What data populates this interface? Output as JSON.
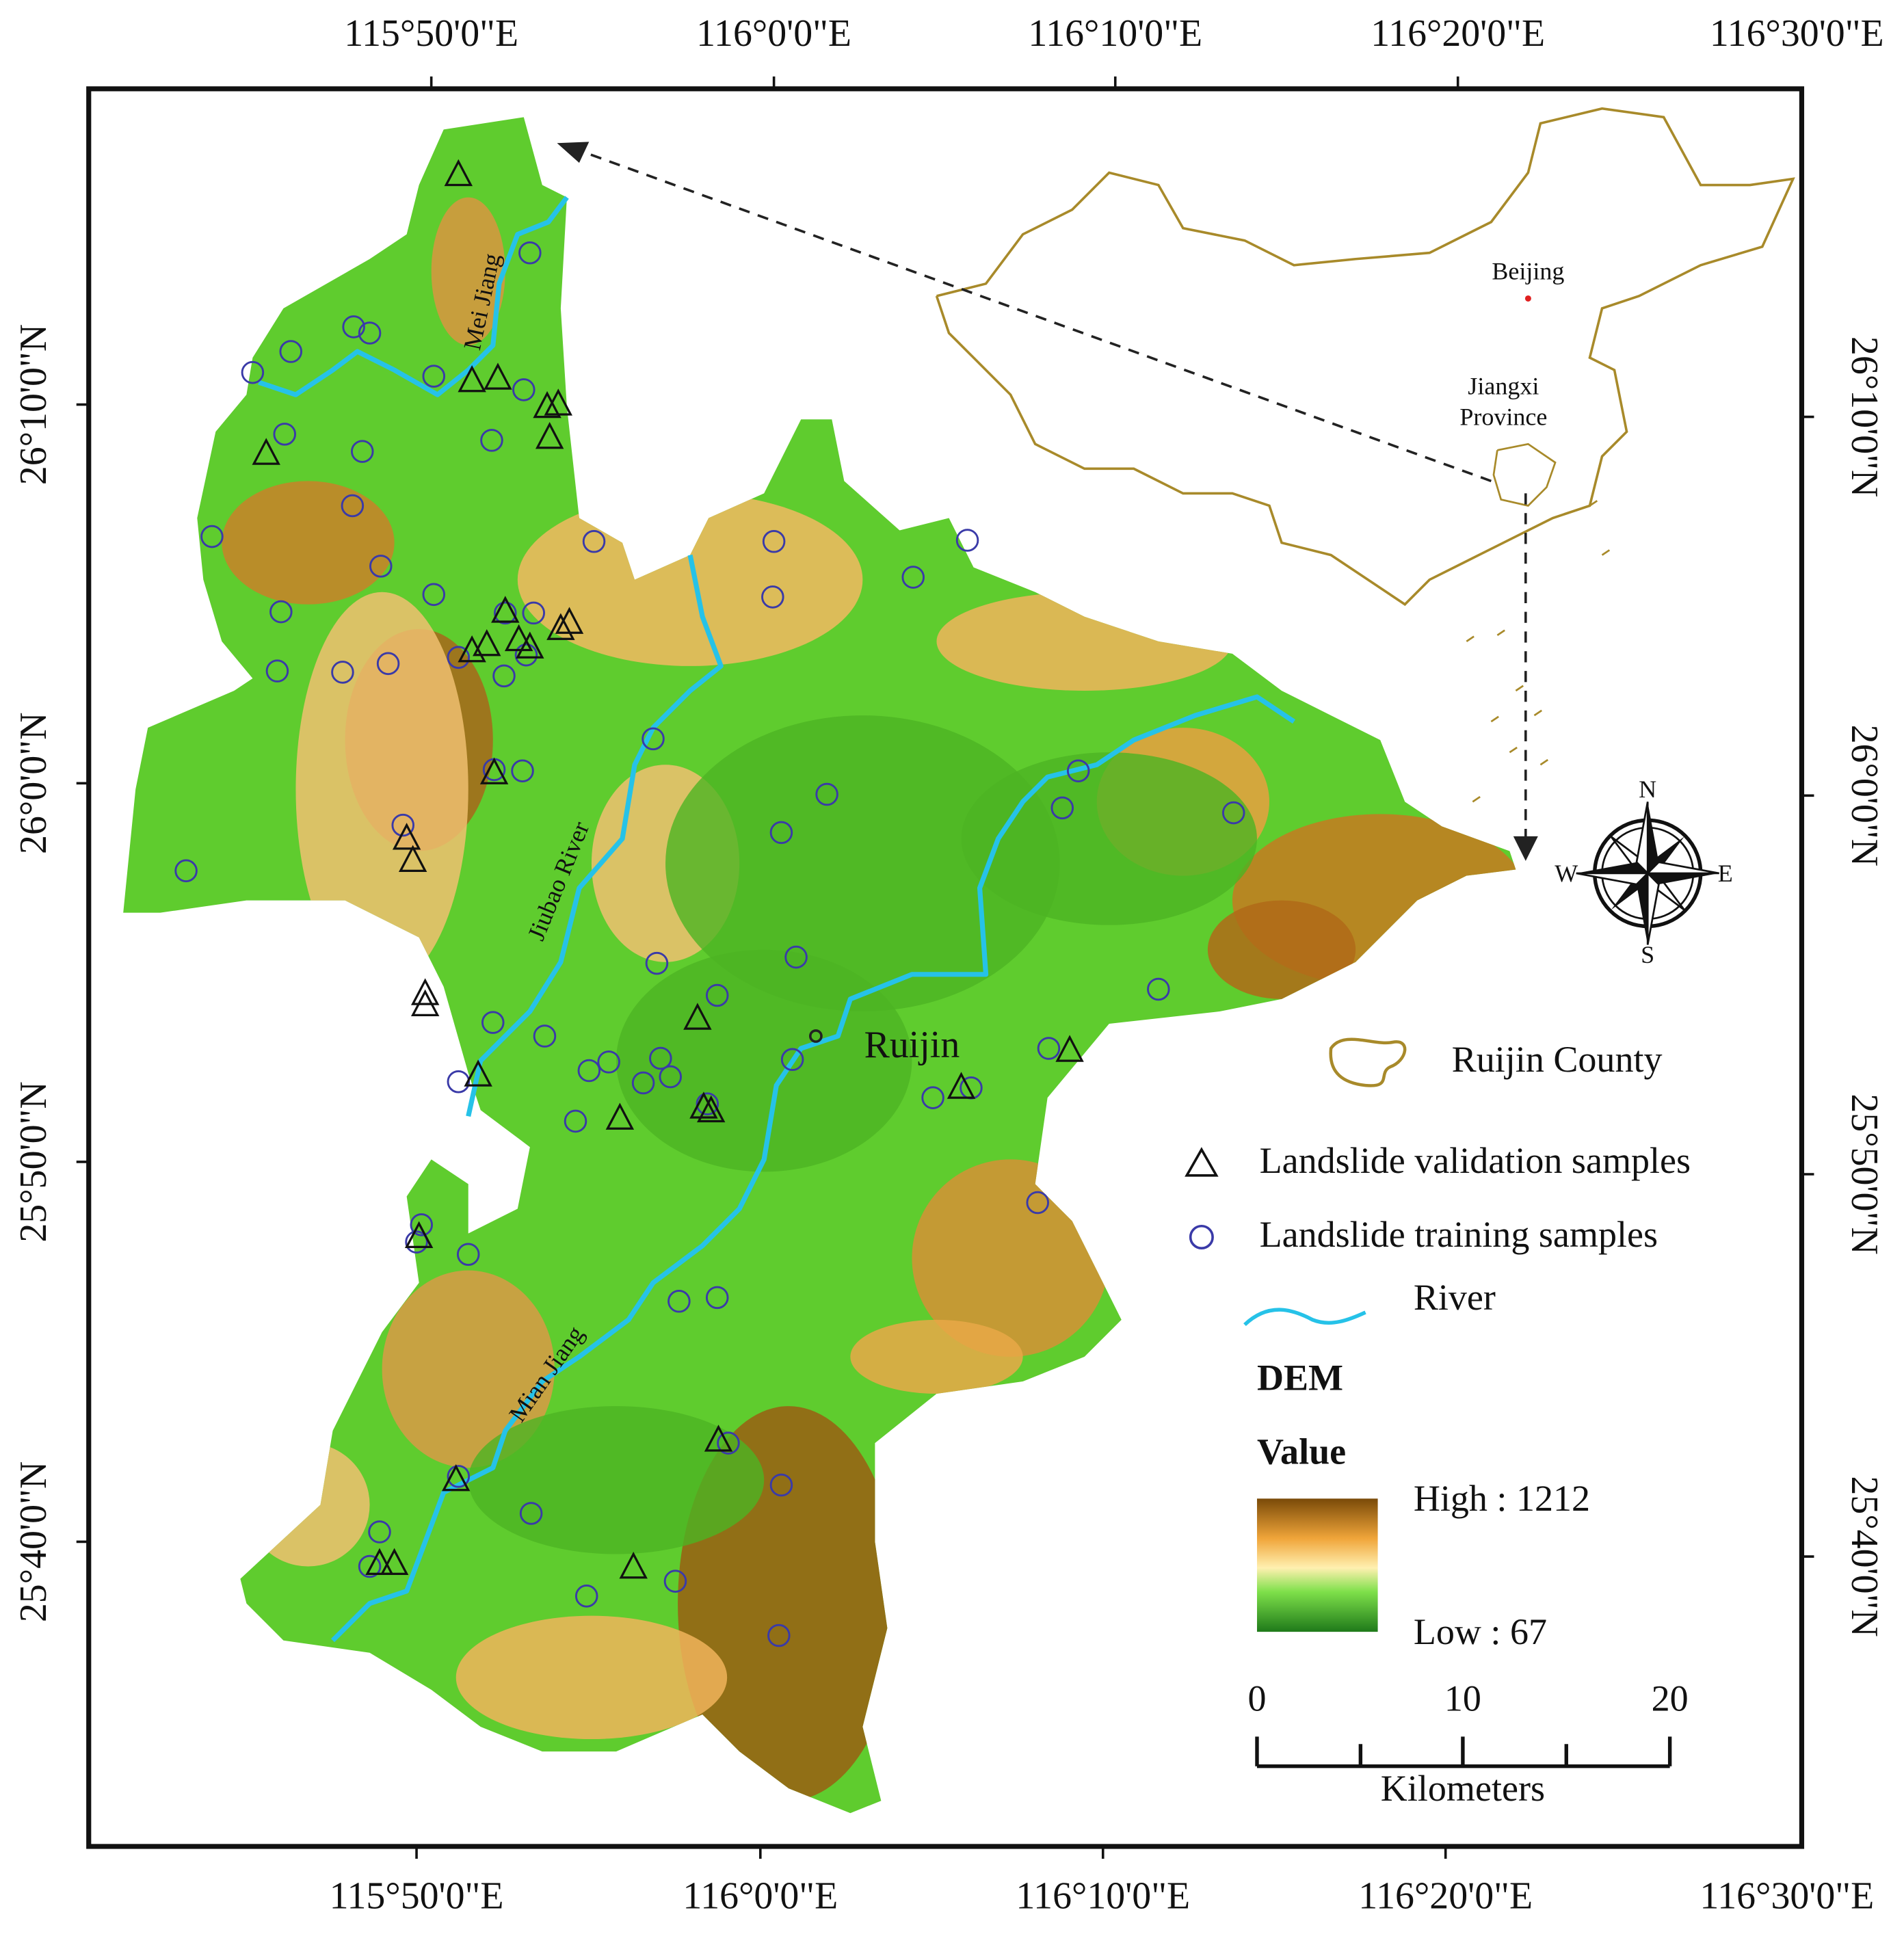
{
  "map": {
    "top_longitude_labels": [
      "115°50'0\"E",
      "116°0'0\"E",
      "116°10'0\"E",
      "116°20'0\"E",
      "116°30'0\"E"
    ],
    "bottom_longitude_labels": [
      "115°50'0\"E",
      "116°0'0\"E",
      "116°10'0\"E",
      "116°20'0\"E",
      "116°30'0\"E"
    ],
    "left_latitude_labels": [
      "26°10'0\"N",
      "26°0'0\"N",
      "25°50'0\"N",
      "25°40'0\"N"
    ],
    "right_latitude_labels": [
      "26°10'0\"N",
      "26°0'0\"N",
      "25°50'0\"N",
      "25°40'0\"N"
    ],
    "places": {
      "capital": "Beijing",
      "province_line1": "Jiangxi",
      "province_line2": "Province",
      "city": "Ruijin"
    },
    "rivers": {
      "mei": "Mei Jiang",
      "jiubao": "Jiubao River",
      "mian": "Mian Jiang"
    },
    "compass": {
      "north": "N",
      "south": "S",
      "west": "W",
      "east": "E"
    },
    "legend": {
      "county": "Ruijin County",
      "validation": "Landslide validation samples",
      "training": "Landslide training samples",
      "river": "River",
      "dem_title": "DEM",
      "value_title": "Value",
      "high": "High : 1212",
      "low": "Low : 67"
    },
    "scale_bar": {
      "ticks": [
        0,
        10,
        20
      ],
      "unit": "Kilometers"
    }
  }
}
